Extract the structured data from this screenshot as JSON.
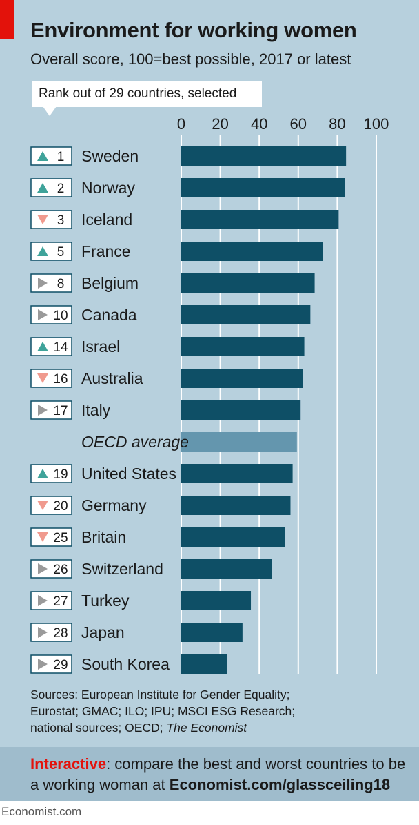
{
  "header": {
    "title": "Environment for working women",
    "subtitle": "Overall score, 100=best possible, 2017 or latest",
    "rank_caption": "Rank out of 29 countries, selected"
  },
  "colors": {
    "bar": "#0e4f66",
    "bar_average": "#6496ae",
    "up": "#3fa39a",
    "down": "#f09a8e",
    "same": "#9a9a9a",
    "background": "#b7d0dd",
    "accent": "#e3120b"
  },
  "chart_data": {
    "type": "bar",
    "orientation": "horizontal",
    "title": "Environment for working women",
    "subtitle": "Overall score, 100=best possible, 2017 or latest",
    "xlim": [
      0,
      100
    ],
    "xticks": [
      "0",
      "20",
      "40",
      "60",
      "80",
      "100"
    ],
    "categories": [
      "Sweden",
      "Norway",
      "Iceland",
      "France",
      "Belgium",
      "Canada",
      "Israel",
      "Australia",
      "Italy",
      "OECD average",
      "United States",
      "Germany",
      "Britain",
      "Switzerland",
      "Turkey",
      "Japan",
      "South Korea"
    ],
    "ranks": [
      "1",
      "2",
      "3",
      "5",
      "8",
      "10",
      "14",
      "16",
      "17",
      "",
      "19",
      "20",
      "25",
      "26",
      "27",
      "28",
      "29"
    ],
    "rank_change": [
      "up",
      "up",
      "down",
      "up",
      "same",
      "same",
      "up",
      "down",
      "same",
      "",
      "up",
      "down",
      "down",
      "same",
      "same",
      "same",
      "same"
    ],
    "values": [
      84.5,
      83.8,
      80.7,
      72.6,
      68.4,
      66.2,
      63.1,
      62.2,
      61.2,
      59.3,
      57.1,
      56.0,
      53.3,
      46.6,
      35.7,
      31.4,
      23.6
    ],
    "highlight": "OECD average"
  },
  "footer": {
    "sources_line1": "Sources: European Institute for Gender Equality;",
    "sources_line2": "Eurostat; GMAC; ILO; IPU; MSCI ESG Research;",
    "sources_line3": "national sources; OECD; ",
    "sources_italic": "The Economist",
    "promo_lead": "Interactive",
    "promo_text": ": compare the best and worst countries to be a working woman at ",
    "promo_url": "Economist.com/glassceiling18",
    "credit": "Economist.com"
  }
}
